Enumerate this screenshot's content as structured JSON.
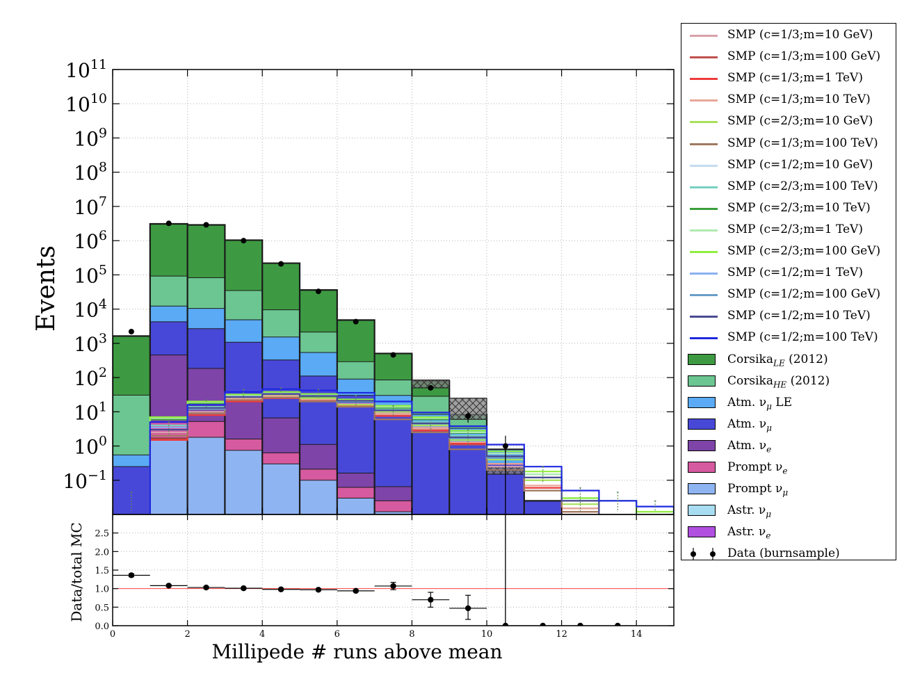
{
  "chart_data": [
    {
      "panel": "main",
      "type": "histogram",
      "ylabel": "Events",
      "yscale": "log",
      "ylim_exp": [
        -2,
        11
      ],
      "ytick_labels": [
        {
          "base": "10",
          "exp": "11"
        },
        {
          "base": "10",
          "exp": "10"
        },
        {
          "base": "10",
          "exp": "9"
        },
        {
          "base": "10",
          "exp": "8"
        },
        {
          "base": "10",
          "exp": "7"
        },
        {
          "base": "10",
          "exp": "6"
        },
        {
          "base": "10",
          "exp": "5"
        },
        {
          "base": "10",
          "exp": "4"
        },
        {
          "base": "10",
          "exp": "3"
        },
        {
          "base": "10",
          "exp": "2"
        },
        {
          "base": "10",
          "exp": "1"
        },
        {
          "base": "10",
          "exp": "0"
        },
        {
          "base": "10",
          "exp": "−1"
        }
      ],
      "xlim": [
        0,
        15
      ],
      "bin_edges": [
        0,
        1,
        2,
        3,
        4,
        5,
        6,
        7,
        8,
        9,
        10,
        11,
        12,
        13,
        14,
        15
      ],
      "grid": true,
      "stacked_series": [
        {
          "name": "Prompt νμ",
          "color": "#8fb4f2",
          "values": [
            0,
            1.7,
            1.8,
            0.75,
            0.3,
            0.1,
            0.03,
            0.012,
            0,
            0,
            0,
            0,
            0,
            0,
            0
          ]
        },
        {
          "name": "Prompt νe",
          "color": "#d65aa0",
          "values": [
            0,
            3.4,
            3.4,
            0.85,
            0.33,
            0.11,
            0.032,
            0.013,
            0,
            0,
            0,
            0,
            0,
            0,
            0
          ]
        },
        {
          "name": "Atm. νe",
          "color": "#7e44a8",
          "values": [
            0,
            450,
            180,
            25,
            6,
            0.9,
            0.1,
            0.04,
            0,
            0,
            0,
            0,
            0,
            0,
            0
          ]
        },
        {
          "name": "Atm. νμ",
          "color": "#4848d8",
          "values": [
            0.25,
            3800,
            2500,
            1050,
            320,
            110,
            30,
            8,
            3.4,
            1.3,
            0.3,
            0.025,
            0,
            0,
            0
          ]
        },
        {
          "name": "Atm. νμ LE",
          "color": "#5aaaf5",
          "values": [
            0.3,
            8000,
            7800,
            3800,
            1200,
            430,
            60,
            22,
            5,
            2,
            0.5,
            0,
            0,
            0,
            0
          ]
        },
        {
          "name": "CorsikaHE (2012)",
          "color": "#6cc691",
          "values": [
            30,
            80000,
            72000,
            30000,
            8000,
            1600,
            200,
            55,
            20,
            5,
            0,
            0,
            0,
            0,
            0
          ]
        },
        {
          "name": "CorsikaLE (2012)",
          "color": "#3d9a42",
          "values": [
            1600,
            3000000,
            2800000,
            1000000,
            210000,
            34000,
            4500,
            420,
            50,
            0,
            0,
            0,
            0,
            0,
            0
          ]
        }
      ],
      "mc_total_hatch": [
        {
          "x0": 8,
          "x1": 9,
          "low": 50,
          "high": 85
        },
        {
          "x0": 9,
          "x1": 10,
          "low": 6,
          "high": 25
        },
        {
          "x0": 10,
          "x1": 11,
          "low": 0.15,
          "high": 0.25
        }
      ],
      "smp_series": [
        {
          "name": "SMP (c=1/3;m=10 GeV)",
          "color": "#d8a2a8",
          "values": [
            null,
            2.5,
            10,
            25,
            30,
            25,
            17,
            9,
            3.5,
            1.2,
            0.25,
            0.05,
            0.015,
            null,
            null
          ]
        },
        {
          "name": "SMP (c=1/3;m=100 GeV)",
          "color": "#c0504d",
          "values": [
            null,
            1.6,
            8,
            22,
            27,
            22,
            16,
            8,
            3,
            1.1,
            0.3,
            0.06,
            0.015,
            null,
            null
          ]
        },
        {
          "name": "SMP (c=1/3;m=1 TeV)",
          "color": "#ee3b3b",
          "values": [
            null,
            1.5,
            8,
            20,
            25,
            20,
            15,
            7.5,
            2.8,
            1.2,
            0.3,
            0.06,
            0.012,
            null,
            null
          ]
        },
        {
          "name": "SMP (c=1/3;m=10 TeV)",
          "color": "#e8a898",
          "values": [
            null,
            2,
            9,
            23,
            28,
            23,
            16,
            8.5,
            3.2,
            1.3,
            0.3,
            0.07,
            0.015,
            null,
            null
          ]
        },
        {
          "name": "SMP (c=2/3;m=10 GeV)",
          "color": "#a8e05a",
          "values": [
            null,
            6,
            17,
            27,
            32,
            25,
            16,
            10,
            4,
            1.5,
            0.4,
            0.1,
            0.02,
            null,
            null
          ]
        },
        {
          "name": "SMP (c=1/3;m=100 TeV)",
          "color": "#a07860",
          "values": [
            null,
            2,
            9,
            22,
            26,
            20,
            14,
            6,
            2.5,
            0.8,
            0.2,
            0.05,
            0.012,
            null,
            null
          ]
        },
        {
          "name": "SMP (c=1/2;m=10 GeV)",
          "color": "#c4dcf0",
          "values": [
            null,
            3,
            12,
            28,
            35,
            30,
            20,
            12,
            5,
            2,
            0.6,
            0.15,
            0.03,
            null,
            null
          ]
        },
        {
          "name": "SMP (c=2/3;m=100 TeV)",
          "color": "#78d0c0",
          "values": [
            null,
            4,
            14,
            30,
            36,
            30,
            21,
            12,
            5,
            2,
            0.5,
            0.15,
            0.03,
            0.025,
            null
          ]
        },
        {
          "name": "SMP (c=2/3;m=10 TeV)",
          "color": "#3a9e3a",
          "values": [
            null,
            6,
            18,
            28,
            34,
            28,
            20,
            13,
            6,
            2.4,
            0.5,
            0.12,
            0.025,
            null,
            null
          ]
        },
        {
          "name": "SMP (c=2/3;m=1 TeV)",
          "color": "#b0eab0",
          "values": [
            null,
            6.5,
            19,
            30,
            36,
            31,
            22,
            14,
            6.5,
            2.5,
            0.6,
            0.15,
            0.03,
            0.025,
            0.012
          ]
        },
        {
          "name": "SMP (c=2/3;m=100 GeV)",
          "color": "#90ee40",
          "values": [
            null,
            7,
            20,
            32,
            38,
            33,
            23,
            15,
            7,
            2.8,
            0.7,
            0.18,
            0.03,
            0.025,
            0.012
          ]
        },
        {
          "name": "SMP (c=1/2;m=1 TeV)",
          "color": "#8ab0f0",
          "values": [
            null,
            3.5,
            13,
            28,
            34,
            30,
            21,
            11,
            4.5,
            1.8,
            0.5,
            0.12,
            0.025,
            null,
            null
          ]
        },
        {
          "name": "SMP (c=1/2;m=100 GeV)",
          "color": "#6a9ec8",
          "values": [
            null,
            3,
            12,
            27,
            33,
            29,
            20,
            11,
            4.5,
            1.7,
            0.45,
            0.12,
            0.025,
            null,
            null
          ]
        },
        {
          "name": "SMP (c=1/2;m=10 TeV)",
          "color": "#4a4a90",
          "values": [
            null,
            3,
            13,
            27,
            33,
            29,
            21,
            11,
            4.6,
            1.8,
            0.5,
            0.12,
            0.025,
            null,
            null
          ]
        },
        {
          "name": "SMP (c=1/2;m=100 TeV)",
          "color": "#1e28e0",
          "values": [
            null,
            5,
            16,
            38,
            46,
            42,
            36,
            20,
            9.5,
            3.8,
            1.1,
            0.25,
            0.05,
            0.025,
            0.017
          ]
        }
      ],
      "data_points": {
        "name": "Data (burnsample)",
        "x": [
          0.5,
          1.5,
          2.5,
          3.5,
          4.5,
          5.5,
          6.5,
          7.5,
          8.5,
          9.5,
          10.5
        ],
        "y": [
          2200,
          3200000,
          2900000,
          1000000,
          210000,
          33000,
          4300,
          460,
          50,
          7.5,
          1.0
        ],
        "yerr_low": [
          47,
          1800,
          1700,
          1000,
          460,
          180,
          66,
          21,
          7,
          2.7,
          1.0
        ],
        "yerr_high": [
          47,
          1800,
          1700,
          1000,
          460,
          180,
          66,
          21,
          7,
          2.7,
          1.0
        ]
      },
      "smp_error_bars": [
        {
          "x": 0.5,
          "low": 0.012,
          "high": 0.045
        },
        {
          "x": 1.5,
          "low": 2,
          "high": 5
        },
        {
          "x": 2.5,
          "low": 12,
          "high": 22
        },
        {
          "x": 3.5,
          "low": 25,
          "high": 45
        },
        {
          "x": 4.5,
          "low": 30,
          "high": 50
        },
        {
          "x": 5.5,
          "low": 25,
          "high": 45
        },
        {
          "x": 6.5,
          "low": 15,
          "high": 30
        },
        {
          "x": 7.5,
          "low": 7,
          "high": 15
        },
        {
          "x": 8.5,
          "low": 2.5,
          "high": 6
        },
        {
          "x": 9.5,
          "low": 1,
          "high": 3
        },
        {
          "x": 10.5,
          "low": 0.3,
          "high": 0.7
        },
        {
          "x": 11.5,
          "low": 0.08,
          "high": 0.25
        },
        {
          "x": 12.5,
          "low": 0.012,
          "high": 0.06
        },
        {
          "x": 13.5,
          "low": 0.012,
          "high": 0.045
        },
        {
          "x": 14.5,
          "low": 0.012,
          "high": 0.025
        }
      ]
    },
    {
      "panel": "ratio",
      "type": "scatter",
      "xlabel": "Millipede # runs above mean",
      "ylabel": "Data/total MC",
      "xlim": [
        0,
        15
      ],
      "ylim": [
        0,
        3.0
      ],
      "xticks": [
        0,
        2,
        4,
        6,
        8,
        10,
        12,
        14
      ],
      "xtick_labels": [
        "0",
        "2",
        "4",
        "6",
        "8",
        "10",
        "12",
        "14"
      ],
      "yticks": [
        0.0,
        0.5,
        1.0,
        1.5,
        2.0,
        2.5
      ],
      "ytick_labels": [
        "0.0",
        "0.5",
        "1.0",
        "1.5",
        "2.0",
        "2.5"
      ],
      "reference_line": {
        "y": 1.0,
        "color": "#ff4040"
      },
      "x": [
        0.5,
        1.5,
        2.5,
        3.5,
        4.5,
        5.5,
        6.5,
        7.5,
        8.5,
        9.5,
        10.5,
        11.5,
        12.5,
        13.5
      ],
      "y": [
        1.36,
        1.08,
        1.03,
        1.01,
        0.98,
        0.97,
        0.94,
        1.07,
        0.7,
        0.47,
        0,
        0,
        0,
        0
      ],
      "yerr_low": [
        0.04,
        0.03,
        0.03,
        0.03,
        0.03,
        0.03,
        0.03,
        0.1,
        0.2,
        0.3,
        0,
        0,
        0,
        0
      ],
      "yerr_high": [
        0.04,
        0.03,
        0.03,
        0.03,
        0.03,
        0.03,
        0.03,
        0.1,
        0.2,
        0.35,
        8,
        0,
        0,
        0
      ]
    }
  ],
  "legend": {
    "placement": "outside-right",
    "items": [
      {
        "kind": "line",
        "label": "SMP (c=1/3;m=10 GeV)",
        "color": "#d8a2a8"
      },
      {
        "kind": "line",
        "label": "SMP (c=1/3;m=100 GeV)",
        "color": "#c0504d"
      },
      {
        "kind": "line",
        "label": "SMP (c=1/3;m=1 TeV)",
        "color": "#ee3b3b"
      },
      {
        "kind": "line",
        "label": "SMP (c=1/3;m=10 TeV)",
        "color": "#e8a898"
      },
      {
        "kind": "line",
        "label": "SMP (c=2/3;m=10 GeV)",
        "color": "#a8e05a"
      },
      {
        "kind": "line",
        "label": "SMP (c=1/3;m=100 TeV)",
        "color": "#a07860"
      },
      {
        "kind": "line",
        "label": "SMP (c=1/2;m=10 GeV)",
        "color": "#c4dcf0"
      },
      {
        "kind": "line",
        "label": "SMP (c=2/3;m=100 TeV)",
        "color": "#78d0c0"
      },
      {
        "kind": "line",
        "label": "SMP (c=2/3;m=10 TeV)",
        "color": "#3a9e3a"
      },
      {
        "kind": "line",
        "label": "SMP (c=2/3;m=1 TeV)",
        "color": "#b0eab0"
      },
      {
        "kind": "line",
        "label": "SMP (c=2/3;m=100 GeV)",
        "color": "#90ee40"
      },
      {
        "kind": "line",
        "label": "SMP (c=1/2;m=1 TeV)",
        "color": "#8ab0f0"
      },
      {
        "kind": "line",
        "label": "SMP (c=1/2;m=100 GeV)",
        "color": "#6a9ec8"
      },
      {
        "kind": "line",
        "label": "SMP (c=1/2;m=10 TeV)",
        "color": "#4a4a90"
      },
      {
        "kind": "line",
        "label": "SMP (c=1/2;m=100 TeV)",
        "color": "#1e28e0"
      },
      {
        "kind": "patch",
        "label": "Corsika",
        "sub": "LE",
        "suffix": " (2012)",
        "color": "#3d9a42"
      },
      {
        "kind": "patch",
        "label": "Corsika",
        "sub": "HE",
        "suffix": " (2012)",
        "color": "#6cc691"
      },
      {
        "kind": "patch",
        "label": "Atm. ν",
        "sub": "μ",
        "suffix": " LE",
        "color": "#5aaaf5"
      },
      {
        "kind": "patch",
        "label": "Atm. ν",
        "sub": "μ",
        "suffix": "",
        "color": "#4848d8"
      },
      {
        "kind": "patch",
        "label": "Atm. ν",
        "sub": "e",
        "suffix": "",
        "color": "#7e44a8"
      },
      {
        "kind": "patch",
        "label": "Prompt ν",
        "sub": "e",
        "suffix": "",
        "color": "#d65aa0"
      },
      {
        "kind": "patch",
        "label": "Prompt ν",
        "sub": "μ",
        "suffix": "",
        "color": "#8fb4f2"
      },
      {
        "kind": "patch",
        "label": "Astr. ν",
        "sub": "μ",
        "suffix": "",
        "color": "#a8dcf0"
      },
      {
        "kind": "patch",
        "label": "Astr. ν",
        "sub": "e",
        "suffix": "",
        "color": "#b050e0"
      },
      {
        "kind": "marker",
        "label": "Data (burnsample)",
        "color": "#000000"
      }
    ]
  }
}
